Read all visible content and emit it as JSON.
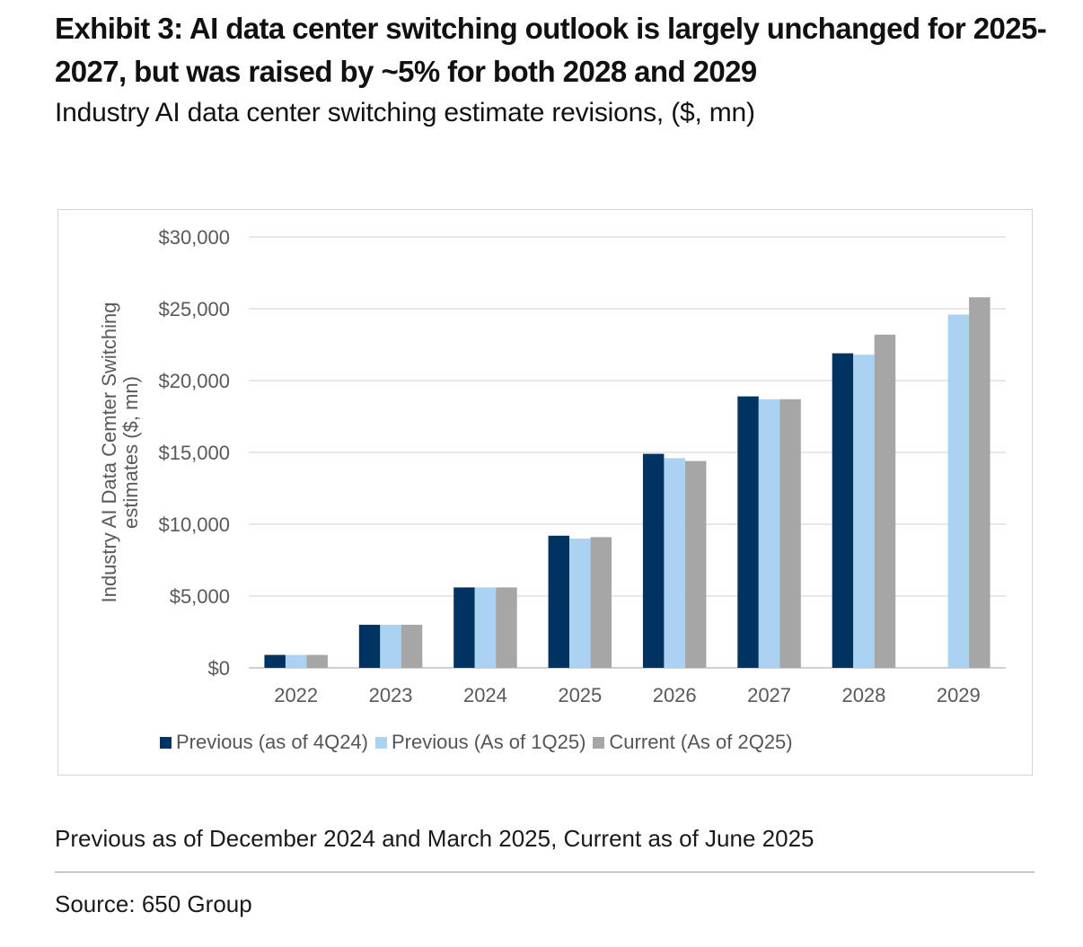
{
  "exhibit": {
    "title": "Exhibit 3: AI data center switching outlook is largely unchanged for 2025-2027, but was raised by ~5% for both 2028 and 2029",
    "subtitle": "Industry AI data center switching estimate revisions, ($, mn)"
  },
  "chart_data": {
    "type": "bar",
    "title": "",
    "xlabel": "",
    "ylabel": "Industry AI Data Cemter Switching estimates ($, mn)",
    "ylabel_lines": [
      "Industry AI Data Cemter Switching",
      "estimates ($, mn)"
    ],
    "ylim": [
      0,
      30000
    ],
    "yticks": [
      0,
      5000,
      10000,
      15000,
      20000,
      25000,
      30000
    ],
    "ytick_labels": [
      "$0",
      "$5,000",
      "$10,000",
      "$15,000",
      "$20,000",
      "$25,000",
      "$30,000"
    ],
    "grid": true,
    "legend_position": "bottom",
    "categories": [
      "2022",
      "2023",
      "2024",
      "2025",
      "2026",
      "2027",
      "2028",
      "2029"
    ],
    "series": [
      {
        "name": "Previous (as of 4Q24)",
        "color": "#003460",
        "values": [
          900,
          3000,
          5600,
          9200,
          14900,
          18900,
          21900,
          null
        ]
      },
      {
        "name": "Previous (As of 1Q25)",
        "color": "#a9d3f0",
        "values": [
          900,
          3000,
          5600,
          9000,
          14600,
          18700,
          21800,
          24600
        ]
      },
      {
        "name": "Current (As of 2Q25)",
        "color": "#a6a6a6",
        "values": [
          900,
          3000,
          5600,
          9100,
          14400,
          18700,
          23200,
          25800
        ]
      }
    ]
  },
  "notes": {
    "footnote": "Previous as of December 2024 and March 2025, Current as of June 2025",
    "source": "Source: 650 Group"
  }
}
